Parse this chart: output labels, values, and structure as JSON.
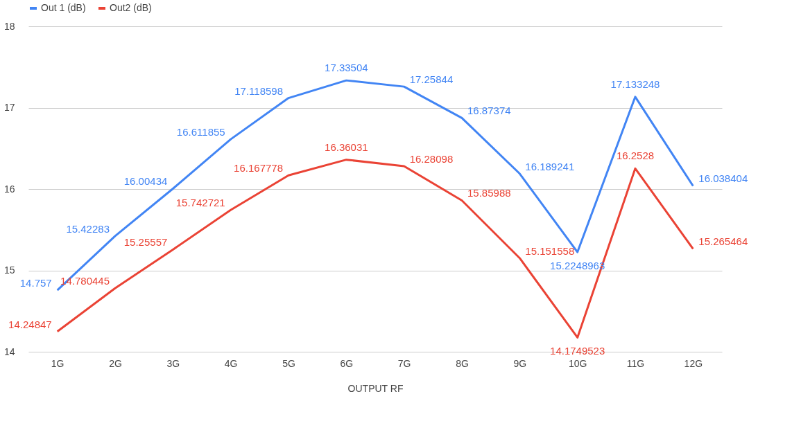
{
  "chart_data": {
    "type": "line",
    "xlabel": "OUTPUT RF",
    "categories": [
      "1G",
      "2G",
      "3G",
      "4G",
      "5G",
      "6G",
      "7G",
      "8G",
      "9G",
      "10G",
      "11G",
      "12G"
    ],
    "series": [
      {
        "name": "Out 1 (dB)",
        "color": "#4285f4",
        "values": [
          14.757,
          15.42283,
          16.00434,
          16.611855,
          17.118598,
          17.33504,
          17.25844,
          16.87374,
          16.189241,
          15.2248963,
          17.133248,
          16.038404
        ]
      },
      {
        "name": "Out2 (dB)",
        "color": "#ea4335",
        "values": [
          14.24847,
          14.780445,
          15.25557,
          15.742721,
          16.167778,
          16.36031,
          16.28098,
          15.85988,
          15.151558,
          14.1749523,
          16.2528,
          15.265464
        ]
      }
    ],
    "ylim": [
      14,
      18
    ],
    "yticks": [
      14,
      15,
      16,
      17,
      18
    ],
    "grid": "y",
    "legend": "top",
    "data_labels": true
  }
}
